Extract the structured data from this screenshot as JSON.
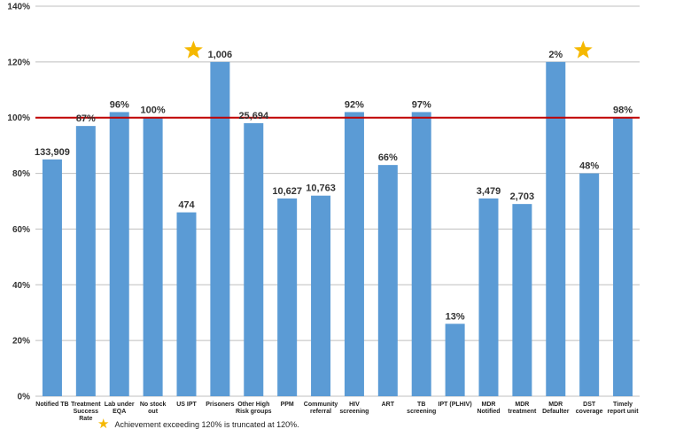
{
  "chart_data": {
    "type": "bar",
    "categories": [
      [
        "Notified TB"
      ],
      [
        "Treatment",
        "Success",
        "Rate"
      ],
      [
        "Lab under",
        "EQA"
      ],
      [
        "No stock",
        "out"
      ],
      [
        "US IPT"
      ],
      [
        "Prisoners"
      ],
      [
        "Other High",
        "Risk groups"
      ],
      [
        "PPM"
      ],
      [
        "Community",
        "referral"
      ],
      [
        "HIV",
        "screening"
      ],
      [
        "ART"
      ],
      [
        "TB",
        "screening"
      ],
      [
        "IPT (PLHIV)"
      ],
      [
        "MDR",
        "Notified"
      ],
      [
        "MDR",
        "treatment"
      ],
      [
        "MDR",
        "Defaulter"
      ],
      [
        "DST",
        "coverage"
      ],
      [
        "Timely",
        "report unit"
      ]
    ],
    "values": [
      85,
      97,
      102,
      100,
      66,
      120,
      98,
      71,
      72,
      102,
      83,
      102,
      26,
      71,
      69,
      120,
      80,
      100
    ],
    "data_labels": [
      "133,909",
      "87%",
      "96%",
      "100%",
      "474",
      "1,006",
      "25,694",
      "10,627",
      "10,763",
      "92%",
      "66%",
      "97%",
      "13%",
      "3,479",
      "2,703",
      "2%",
      "48%",
      "98%"
    ],
    "truncated": [
      false,
      false,
      false,
      false,
      false,
      true,
      false,
      false,
      false,
      false,
      false,
      false,
      false,
      false,
      false,
      true,
      false,
      false
    ],
    "y_ticks": [
      "0%",
      "20%",
      "40%",
      "60%",
      "80%",
      "100%",
      "120%",
      "140%"
    ],
    "ylim": [
      0,
      140
    ],
    "target_line": 100,
    "grid": true,
    "colors": {
      "bar": "#5b9bd5",
      "target": "#c00000",
      "grid": "#bfbfbf",
      "star": "#f5b800"
    }
  },
  "footnote": {
    "icon": "star-icon",
    "text": "Achievement exceeding 120% is truncated at 120%."
  }
}
